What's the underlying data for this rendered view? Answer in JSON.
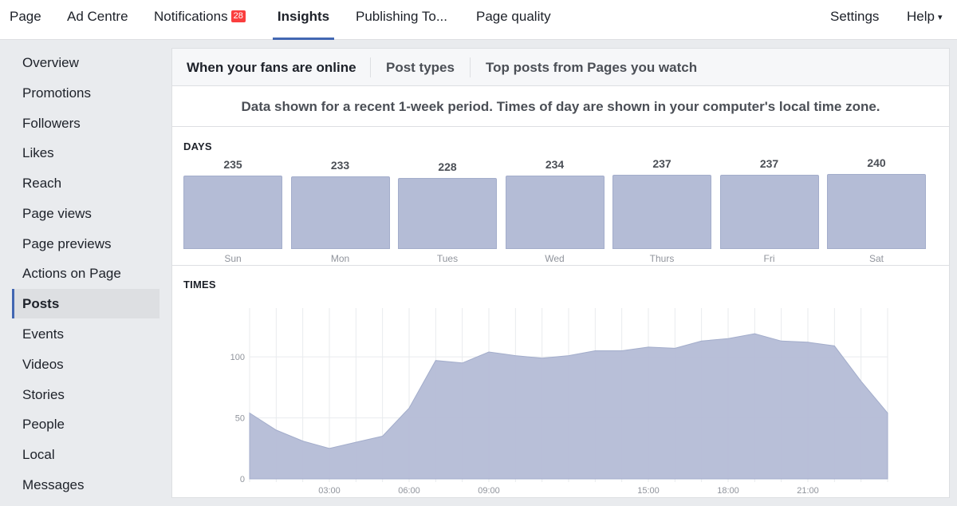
{
  "topnav": {
    "items": [
      {
        "label": "Page"
      },
      {
        "label": "Ad Centre"
      },
      {
        "label": "Notifications",
        "badge": "28"
      },
      {
        "label": "Insights",
        "active": true
      },
      {
        "label": "Publishing To..."
      },
      {
        "label": "Page quality"
      }
    ],
    "settings": "Settings",
    "help": "Help",
    "help_caret": "▾"
  },
  "sidebar": {
    "items": [
      {
        "label": "Overview"
      },
      {
        "label": "Promotions"
      },
      {
        "label": "Followers"
      },
      {
        "label": "Likes"
      },
      {
        "label": "Reach"
      },
      {
        "label": "Page views"
      },
      {
        "label": "Page previews"
      },
      {
        "label": "Actions on Page"
      },
      {
        "label": "Posts",
        "active": true
      },
      {
        "label": "Events"
      },
      {
        "label": "Videos"
      },
      {
        "label": "Stories"
      },
      {
        "label": "People"
      },
      {
        "label": "Local"
      },
      {
        "label": "Messages"
      }
    ]
  },
  "main": {
    "tabs": [
      {
        "label": "When your fans are online",
        "active": true
      },
      {
        "label": "Post types"
      },
      {
        "label": "Top posts from Pages you watch"
      }
    ],
    "notice": "Data shown for a recent 1-week period. Times of day are shown in your computer's local time zone.",
    "days_label": "DAYS",
    "times_label": "TIMES"
  },
  "colors": {
    "accent": "#4267b2",
    "bar_fill": "#b4bcd6",
    "area_fill": "#b4bcd6",
    "badge": "#fa3e3e"
  },
  "chart_data": [
    {
      "type": "bar",
      "title": "DAYS",
      "categories": [
        "Sun",
        "Mon",
        "Tues",
        "Wed",
        "Thurs",
        "Fri",
        "Sat"
      ],
      "values": [
        235,
        233,
        228,
        234,
        237,
        237,
        240
      ]
    },
    {
      "type": "area",
      "title": "TIMES",
      "x_hours": [
        0,
        1,
        2,
        3,
        4,
        5,
        6,
        7,
        8,
        9,
        10,
        11,
        12,
        13,
        14,
        15,
        16,
        17,
        18,
        19,
        20,
        21,
        22,
        23,
        24
      ],
      "values": [
        54,
        40,
        31,
        25,
        30,
        35,
        58,
        97,
        95,
        104,
        101,
        99,
        101,
        105,
        105,
        108,
        107,
        113,
        115,
        119,
        113,
        112,
        109,
        80,
        54
      ],
      "x_tick_labels": [
        "03:00",
        "06:00",
        "09:00",
        "15:00",
        "18:00",
        "21:00"
      ],
      "x_tick_hours": [
        3,
        6,
        9,
        15,
        18,
        21
      ],
      "y_ticks": [
        0,
        50,
        100
      ],
      "ylim": [
        0,
        140
      ],
      "grid": true
    }
  ]
}
